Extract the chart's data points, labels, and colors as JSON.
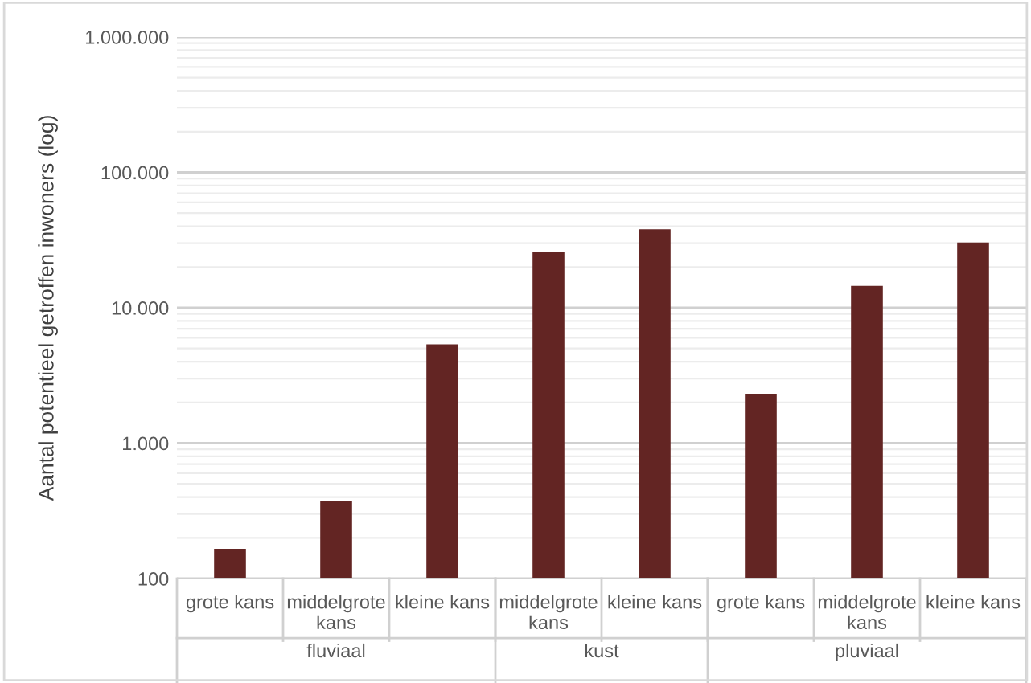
{
  "chart_data": {
    "type": "bar",
    "ylabel": "Aantal potentieel getroffen inwoners (log)",
    "categories": [
      "grote kans",
      "middelgrote kans",
      "kleine kans",
      "middelgrote kans",
      "kleine kans",
      "grote kans",
      "middelgrote kans",
      "kleine kans"
    ],
    "values": [
      166,
      376,
      5370,
      26000,
      38000,
      2320,
      14500,
      30400
    ],
    "color": "#632523",
    "log": true,
    "ylim": [
      100,
      1000000
    ],
    "yticks": [
      100,
      {
        "value": 1000,
        "label": "1.000"
      },
      {
        "value": 10000,
        "label": "10.000"
      },
      {
        "value": 100000,
        "label": "100.000"
      },
      {
        "value": 1000000,
        "label": "1.000.000"
      }
    ],
    "annotations": [
      "fluviaal",
      "kust",
      "pluviaal"
    ],
    "grid": "y"
  }
}
